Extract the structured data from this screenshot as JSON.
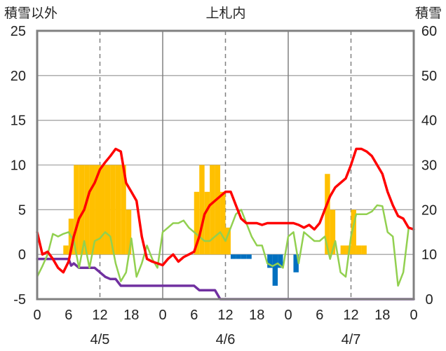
{
  "chart_data": {
    "type": "bar+line",
    "title": "上札内",
    "left_axis_label": "積雪以外",
    "right_axis_label": "積雪",
    "left_ylim": [
      -5,
      25
    ],
    "left_ticks": [
      "25",
      "20",
      "15",
      "10",
      "5",
      "0",
      "-5"
    ],
    "right_ylim": [
      0,
      60
    ],
    "right_ticks": [
      "60",
      "50",
      "40",
      "30",
      "20",
      "10",
      "0"
    ],
    "x_hours": [
      0,
      72
    ],
    "x_tick_labels": [
      "0",
      "6",
      "12",
      "18",
      "0",
      "6",
      "12",
      "18",
      "0",
      "6",
      "12",
      "18",
      "0"
    ],
    "date_labels": [
      "4/5",
      "4/6",
      "4/7"
    ],
    "day_separator_hours": [
      24,
      48
    ],
    "noon_gridline_hours": [
      12,
      36,
      60
    ],
    "series": [
      {
        "name": "bars",
        "axis": "left",
        "colors": {
          "positive": "#ffc000",
          "negative": "#0070c0"
        },
        "data": [
          [
            5.5,
            1
          ],
          [
            6.5,
            4
          ],
          [
            7.5,
            10
          ],
          [
            8.5,
            10
          ],
          [
            9.5,
            10
          ],
          [
            10.5,
            10
          ],
          [
            11.5,
            10
          ],
          [
            12.5,
            10
          ],
          [
            13.5,
            10
          ],
          [
            14.5,
            10
          ],
          [
            15.5,
            10
          ],
          [
            16.5,
            10
          ],
          [
            17.5,
            5
          ],
          [
            30.5,
            7
          ],
          [
            31.5,
            10
          ],
          [
            32.5,
            7
          ],
          [
            33.5,
            10
          ],
          [
            34.5,
            10
          ],
          [
            35.5,
            7
          ],
          [
            36.5,
            3
          ],
          [
            37.5,
            -0.5
          ],
          [
            38.5,
            -0.5
          ],
          [
            39.5,
            -0.5
          ],
          [
            40.5,
            -0.5
          ],
          [
            44.5,
            -1.5
          ],
          [
            45.5,
            -3.5
          ],
          [
            46.5,
            -1.5
          ],
          [
            49.5,
            -2
          ],
          [
            55.5,
            9
          ],
          [
            56.5,
            5
          ],
          [
            58.5,
            1
          ],
          [
            59.5,
            1
          ],
          [
            60.5,
            5
          ],
          [
            61.5,
            1
          ],
          [
            62.5,
            1
          ]
        ]
      },
      {
        "name": "temperature",
        "axis": "left",
        "color": "#ff0000",
        "data": [
          [
            0,
            2.5
          ],
          [
            1,
            0
          ],
          [
            2,
            0.3
          ],
          [
            3,
            -0.5
          ],
          [
            4,
            -1.5
          ],
          [
            5,
            -2
          ],
          [
            6,
            -0.8
          ],
          [
            7,
            2
          ],
          [
            8,
            4
          ],
          [
            9,
            5
          ],
          [
            10,
            7
          ],
          [
            11,
            8
          ],
          [
            12,
            9.5
          ],
          [
            13,
            10.3
          ],
          [
            14,
            11
          ],
          [
            15,
            11.8
          ],
          [
            16,
            11.5
          ],
          [
            17,
            8
          ],
          [
            18,
            7
          ],
          [
            19,
            6
          ],
          [
            20,
            2
          ],
          [
            21,
            -0.5
          ],
          [
            22,
            -0.8
          ],
          [
            23,
            -1
          ],
          [
            24,
            -1.2
          ],
          [
            25,
            -0.5
          ],
          [
            26,
            0
          ],
          [
            27,
            -0.8
          ],
          [
            28,
            -0.3
          ],
          [
            29,
            0
          ],
          [
            30,
            0.3
          ],
          [
            31,
            2
          ],
          [
            32,
            4.5
          ],
          [
            33,
            5.5
          ],
          [
            34,
            6
          ],
          [
            35,
            6.5
          ],
          [
            36,
            7
          ],
          [
            37,
            7
          ],
          [
            38,
            5.5
          ],
          [
            39,
            4
          ],
          [
            40,
            3.5
          ],
          [
            41,
            3.5
          ],
          [
            42,
            3.5
          ],
          [
            43,
            3.3
          ],
          [
            44,
            3.5
          ],
          [
            45,
            3.5
          ],
          [
            46,
            3.5
          ],
          [
            47,
            3.5
          ],
          [
            48,
            3.5
          ],
          [
            49,
            3.5
          ],
          [
            50,
            3.3
          ],
          [
            51,
            3
          ],
          [
            52,
            3.3
          ],
          [
            53,
            2.8
          ],
          [
            54,
            3.5
          ],
          [
            55,
            5
          ],
          [
            56,
            6.5
          ],
          [
            57,
            7.5
          ],
          [
            58,
            8
          ],
          [
            59,
            8.5
          ],
          [
            60,
            10
          ],
          [
            61,
            11.8
          ],
          [
            62,
            11.8
          ],
          [
            63,
            11.5
          ],
          [
            64,
            11
          ],
          [
            65,
            10
          ],
          [
            66,
            9
          ],
          [
            67,
            7
          ],
          [
            68,
            5.5
          ],
          [
            69,
            4.3
          ],
          [
            70,
            4
          ],
          [
            71,
            3
          ],
          [
            72,
            2.8
          ]
        ]
      },
      {
        "name": "humidity",
        "axis": "left",
        "color": "#92d050",
        "data": [
          [
            0,
            -2.5
          ],
          [
            1,
            -1.3
          ],
          [
            2,
            0
          ],
          [
            3,
            2.3
          ],
          [
            4,
            2
          ],
          [
            5,
            2.3
          ],
          [
            6,
            2.5
          ],
          [
            7,
            1.5
          ],
          [
            8,
            -1.5
          ],
          [
            9,
            1.5
          ],
          [
            10,
            -1.5
          ],
          [
            11,
            1.5
          ],
          [
            12,
            1.8
          ],
          [
            13,
            2.5
          ],
          [
            14,
            2
          ],
          [
            15,
            -1
          ],
          [
            16,
            -3
          ],
          [
            17,
            -2
          ],
          [
            18,
            1.8
          ],
          [
            19,
            -2.5
          ],
          [
            20,
            -1
          ],
          [
            21,
            1
          ],
          [
            22,
            -0.5
          ],
          [
            23,
            -1.5
          ],
          [
            24,
            2.5
          ],
          [
            25,
            3
          ],
          [
            26,
            3.5
          ],
          [
            27,
            3.5
          ],
          [
            28,
            3.8
          ],
          [
            29,
            3
          ],
          [
            30,
            2.5
          ],
          [
            31,
            2
          ],
          [
            32,
            1.5
          ],
          [
            33,
            1.5
          ],
          [
            34,
            2
          ],
          [
            35,
            2.5
          ],
          [
            36,
            1.5
          ],
          [
            37,
            3
          ],
          [
            38,
            4.5
          ],
          [
            39,
            5
          ],
          [
            40,
            3.5
          ],
          [
            41,
            2
          ],
          [
            42,
            1
          ],
          [
            43,
            1
          ],
          [
            44,
            -1
          ],
          [
            45,
            -1.3
          ],
          [
            46,
            -1
          ],
          [
            47,
            -1.5
          ],
          [
            48,
            2
          ],
          [
            49,
            2.5
          ],
          [
            50,
            -1
          ],
          [
            51,
            2.5
          ],
          [
            52,
            2
          ],
          [
            53,
            1.5
          ],
          [
            54,
            1.5
          ],
          [
            55,
            2
          ],
          [
            56,
            -0.5
          ],
          [
            57,
            1.5
          ],
          [
            58,
            -2
          ],
          [
            59,
            -2.5
          ],
          [
            60,
            2
          ],
          [
            61,
            4.5
          ],
          [
            62,
            4.5
          ],
          [
            63,
            4.5
          ],
          [
            64,
            4.8
          ],
          [
            65,
            5.5
          ],
          [
            66,
            5.4
          ],
          [
            67,
            2.5
          ],
          [
            68,
            2
          ],
          [
            69,
            -3.5
          ],
          [
            70,
            -2
          ],
          [
            71,
            2.8
          ]
        ]
      },
      {
        "name": "snow depth",
        "axis": "right",
        "color": "#7030a0",
        "data": [
          [
            0,
            9
          ],
          [
            6,
            9
          ],
          [
            6.5,
            7.5
          ],
          [
            7,
            8
          ],
          [
            8,
            7
          ],
          [
            9,
            7
          ],
          [
            10,
            7
          ],
          [
            11,
            7
          ],
          [
            12,
            6
          ],
          [
            13,
            5
          ],
          [
            14,
            4.5
          ],
          [
            15,
            4.5
          ],
          [
            16,
            3
          ],
          [
            24,
            3
          ],
          [
            30,
            3
          ],
          [
            31,
            2
          ],
          [
            34,
            2
          ],
          [
            35,
            0
          ],
          [
            72,
            0
          ]
        ]
      }
    ]
  }
}
